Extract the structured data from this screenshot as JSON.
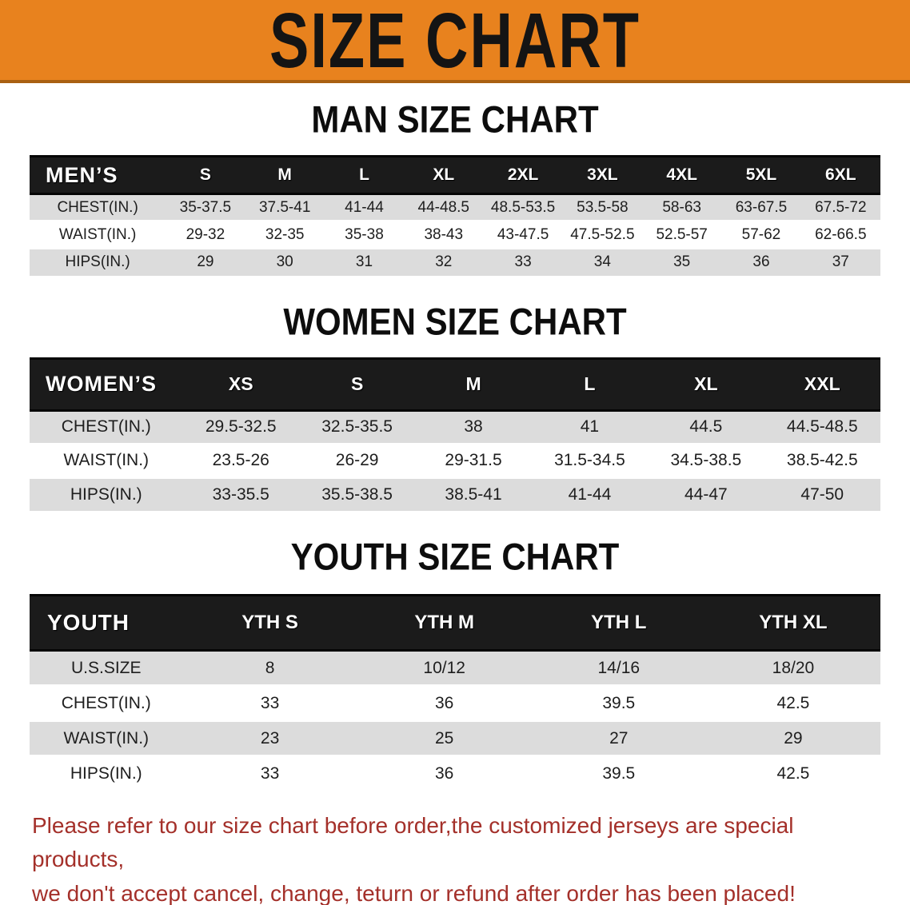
{
  "banner": {
    "title": "SIZE CHART",
    "bg_color": "#E8821E",
    "text_color": "#141414"
  },
  "sections": [
    {
      "heading": "MAN SIZE CHART",
      "table": {
        "label": "MEN’S",
        "columns": [
          "S",
          "M",
          "L",
          "XL",
          "2XL",
          "3XL",
          "4XL",
          "5XL",
          "6XL"
        ],
        "rows": [
          {
            "label": "CHEST(IN.)",
            "values": [
              "35-37.5",
              "37.5-41",
              "41-44",
              "44-48.5",
              "48.5-53.5",
              "53.5-58",
              "58-63",
              "63-67.5",
              "67.5-72"
            ]
          },
          {
            "label": "WAIST(IN.)",
            "values": [
              "29-32",
              "32-35",
              "35-38",
              "38-43",
              "43-47.5",
              "47.5-52.5",
              "52.5-57",
              "57-62",
              "62-66.5"
            ]
          },
          {
            "label": "HIPS(IN.)",
            "values": [
              "29",
              "30",
              "31",
              "32",
              "33",
              "34",
              "35",
              "36",
              "37"
            ]
          }
        ]
      }
    },
    {
      "heading": "WOMEN SIZE CHART",
      "table": {
        "label": "WOMEN’S",
        "columns": [
          "XS",
          "S",
          "M",
          "L",
          "XL",
          "XXL"
        ],
        "rows": [
          {
            "label": "CHEST(IN.)",
            "values": [
              "29.5-32.5",
              "32.5-35.5",
              "38",
              "41",
              "44.5",
              "44.5-48.5"
            ]
          },
          {
            "label": "WAIST(IN.)",
            "values": [
              "23.5-26",
              "26-29",
              "29-31.5",
              "31.5-34.5",
              "34.5-38.5",
              "38.5-42.5"
            ]
          },
          {
            "label": "HIPS(IN.)",
            "values": [
              "33-35.5",
              "35.5-38.5",
              "38.5-41",
              "41-44",
              "44-47",
              "47-50"
            ]
          }
        ]
      }
    },
    {
      "heading": "YOUTH SIZE CHART",
      "table": {
        "label": "YOUTH",
        "columns": [
          "YTH S",
          "YTH M",
          "YTH L",
          "YTH XL"
        ],
        "rows": [
          {
            "label": "U.S.SIZE",
            "values": [
              "8",
              "10/12",
              "14/16",
              "18/20"
            ]
          },
          {
            "label": "CHEST(IN.)",
            "values": [
              "33",
              "36",
              "39.5",
              "42.5"
            ]
          },
          {
            "label": "WAIST(IN.)",
            "values": [
              "23",
              "25",
              "27",
              "29"
            ]
          },
          {
            "label": "HIPS(IN.)",
            "values": [
              "33",
              "36",
              "39.5",
              "42.5"
            ]
          }
        ]
      }
    }
  ],
  "disclaimer": {
    "line1": "Please refer to our size chart before order,the customized jerseys are special products,",
    "line2": "we don't accept cancel, change, teturn or refund after order has been placed!",
    "text_color": "#A4302A"
  },
  "style_colors": {
    "table_header_bg": "#1B1B1B",
    "row_stripe": "#DCDCDC"
  }
}
